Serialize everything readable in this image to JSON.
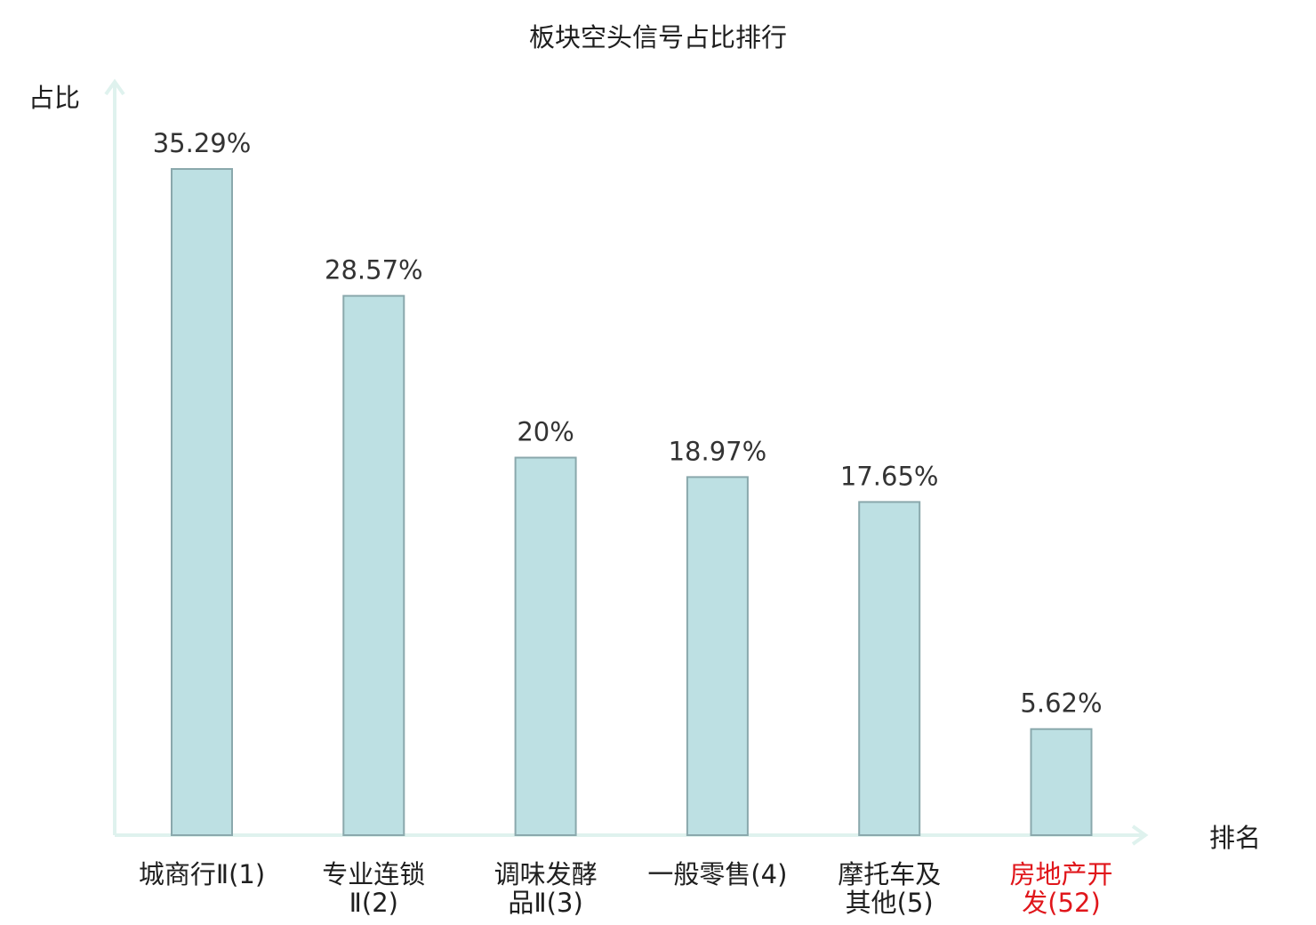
{
  "chart_data": {
    "type": "bar",
    "title": "板块空头信号占比排行",
    "ylabel": "占比",
    "xlabel": "排名",
    "ylim": [
      0,
      40
    ],
    "grid": false,
    "legend": "none",
    "categories": [
      [
        "城商行Ⅱ(1)"
      ],
      [
        "专业连锁",
        "Ⅱ(2)"
      ],
      [
        "调味发酵",
        "品Ⅱ(3)"
      ],
      [
        "一般零售(4)"
      ],
      [
        "摩托车及",
        "其他(5)"
      ],
      [
        "房地产开",
        "发(52)"
      ]
    ],
    "values": [
      35.29,
      28.57,
      20,
      18.97,
      17.65,
      5.62
    ],
    "value_labels": [
      "35.29%",
      "28.57%",
      "20%",
      "18.97%",
      "17.65%",
      "5.62%"
    ],
    "highlight_index": 5,
    "colors": {
      "bar_fill": "#bde0e3",
      "bar_stroke": "#8aa8ac",
      "axis": "#dff2ee",
      "category_text": "#1f1f1f",
      "highlight_text": "#e0161b",
      "value_text": "#333333"
    }
  }
}
